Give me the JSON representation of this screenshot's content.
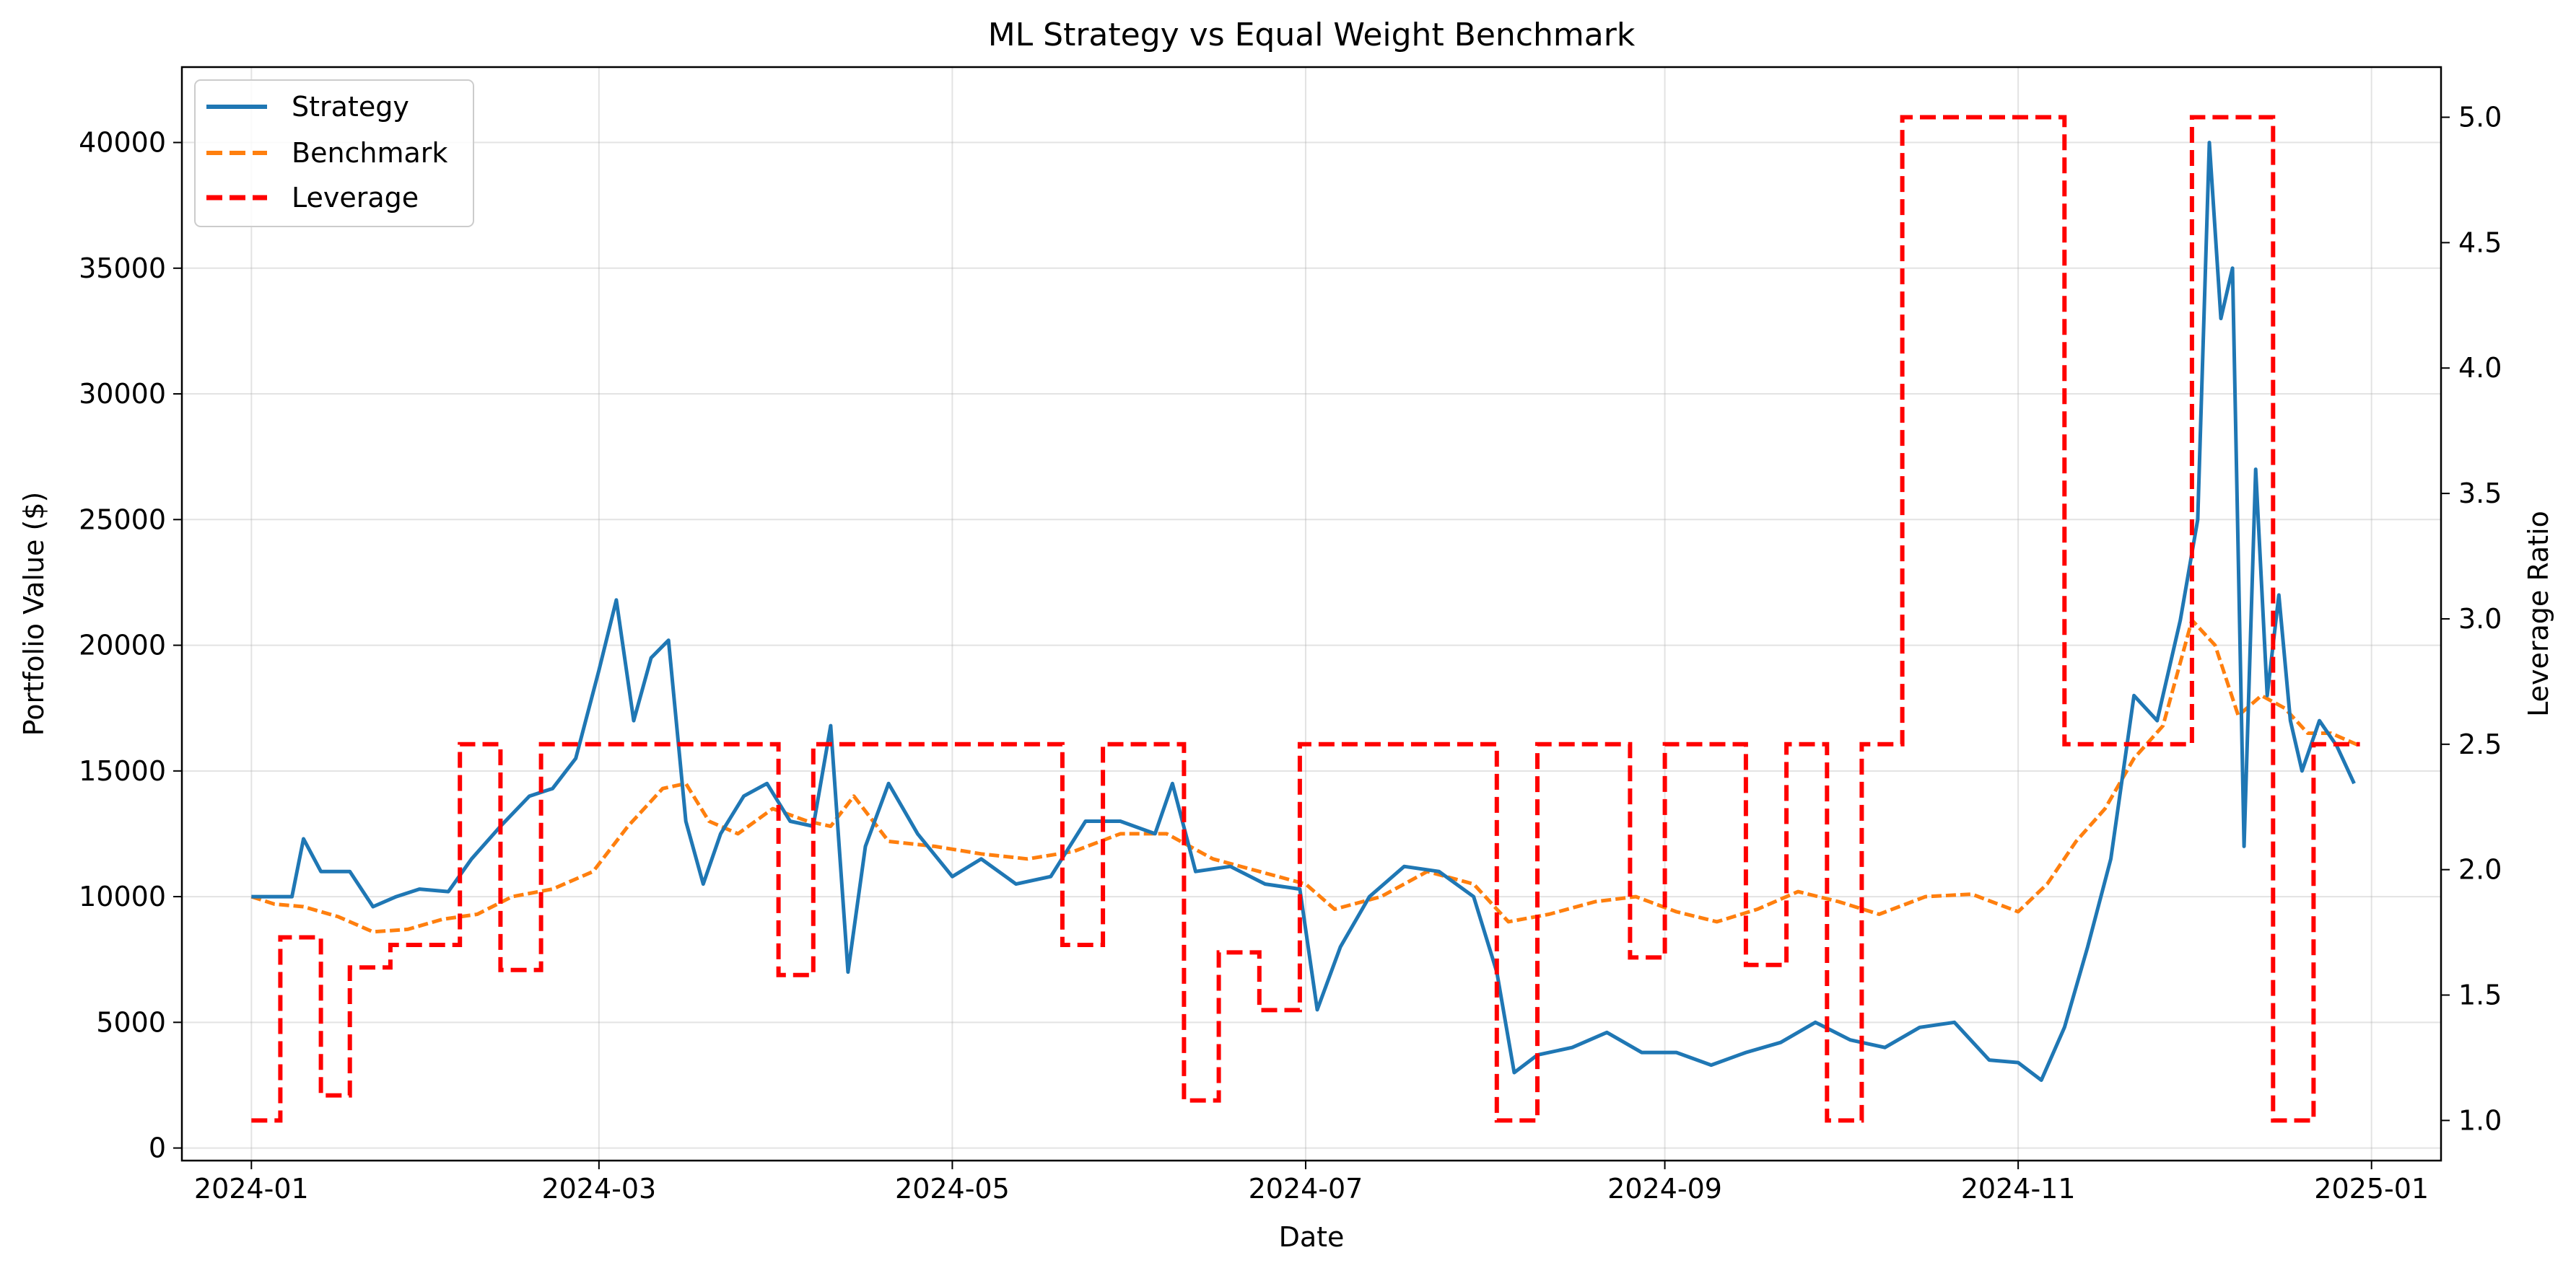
{
  "chart_data": {
    "type": "line",
    "title": "ML Strategy vs Equal Weight Benchmark",
    "xlabel": "Date",
    "ylabel": "Portfolio Value ($)",
    "y2label": "Leverage Ratio",
    "xlim": [
      "2023-12-20",
      "2025-01-13"
    ],
    "ylim": [
      -500,
      43000
    ],
    "y2lim": [
      0.84,
      5.2
    ],
    "x_ticks": [
      "2024-01",
      "2024-03",
      "2024-05",
      "2024-07",
      "2024-09",
      "2024-11",
      "2025-01"
    ],
    "y_ticks": [
      0,
      5000,
      10000,
      15000,
      20000,
      25000,
      30000,
      35000,
      40000
    ],
    "y2_ticks": [
      "1.0",
      "1.5",
      "2.0",
      "2.5",
      "3.0",
      "3.5",
      "4.0",
      "4.5",
      "5.0"
    ],
    "grid": true,
    "legend_position": "top-left",
    "series": [
      {
        "name": "Strategy",
        "axis": "left",
        "style": "solid",
        "color": "#1f77b4",
        "x": [
          "2024-01-01",
          "2024-01-05",
          "2024-01-08",
          "2024-01-10",
          "2024-01-13",
          "2024-01-18",
          "2024-01-22",
          "2024-01-26",
          "2024-01-30",
          "2024-02-04",
          "2024-02-08",
          "2024-02-13",
          "2024-02-18",
          "2024-02-22",
          "2024-02-26",
          "2024-03-01",
          "2024-03-04",
          "2024-03-07",
          "2024-03-10",
          "2024-03-13",
          "2024-03-16",
          "2024-03-19",
          "2024-03-22",
          "2024-03-26",
          "2024-03-30",
          "2024-04-03",
          "2024-04-07",
          "2024-04-10",
          "2024-04-13",
          "2024-04-16",
          "2024-04-20",
          "2024-04-25",
          "2024-05-01",
          "2024-05-06",
          "2024-05-12",
          "2024-05-18",
          "2024-05-24",
          "2024-05-30",
          "2024-06-05",
          "2024-06-08",
          "2024-06-12",
          "2024-06-18",
          "2024-06-24",
          "2024-06-30",
          "2024-07-03",
          "2024-07-07",
          "2024-07-12",
          "2024-07-18",
          "2024-07-24",
          "2024-07-30",
          "2024-08-03",
          "2024-08-06",
          "2024-08-10",
          "2024-08-16",
          "2024-08-22",
          "2024-08-28",
          "2024-09-03",
          "2024-09-09",
          "2024-09-15",
          "2024-09-21",
          "2024-09-27",
          "2024-10-03",
          "2024-10-09",
          "2024-10-15",
          "2024-10-21",
          "2024-10-27",
          "2024-11-01",
          "2024-11-05",
          "2024-11-09",
          "2024-11-13",
          "2024-11-17",
          "2024-11-21",
          "2024-11-25",
          "2024-11-29",
          "2024-12-02",
          "2024-12-04",
          "2024-12-06",
          "2024-12-08",
          "2024-12-10",
          "2024-12-12",
          "2024-12-14",
          "2024-12-16",
          "2024-12-18",
          "2024-12-20",
          "2024-12-23",
          "2024-12-26",
          "2024-12-29"
        ],
        "values": [
          10000,
          10000,
          10000,
          12300,
          11000,
          11000,
          9600,
          10000,
          10300,
          10200,
          11500,
          12800,
          14000,
          14300,
          15500,
          19000,
          21800,
          17000,
          19500,
          20200,
          13000,
          10500,
          12500,
          14000,
          14500,
          13000,
          12800,
          16800,
          7000,
          12000,
          14500,
          12500,
          10800,
          11500,
          10500,
          10800,
          13000,
          13000,
          12500,
          14500,
          11000,
          11200,
          10500,
          10300,
          5500,
          8000,
          10000,
          11200,
          11000,
          10000,
          7000,
          3000,
          3700,
          4000,
          4600,
          3800,
          3800,
          3300,
          3800,
          4200,
          5000,
          4300,
          4000,
          4800,
          5000,
          3500,
          3400,
          2700,
          4800,
          8000,
          11500,
          18000,
          17000,
          21000,
          25000,
          40000,
          33000,
          35000,
          12000,
          27000,
          18000,
          22000,
          17000,
          15000,
          17000,
          16000,
          14500
        ]
      },
      {
        "name": "Benchmark",
        "axis": "left",
        "style": "dashed",
        "color": "#ff7f0e",
        "x": [
          "2024-01-01",
          "2024-01-05",
          "2024-01-10",
          "2024-01-16",
          "2024-01-22",
          "2024-01-28",
          "2024-02-03",
          "2024-02-09",
          "2024-02-15",
          "2024-02-22",
          "2024-02-29",
          "2024-03-06",
          "2024-03-12",
          "2024-03-16",
          "2024-03-20",
          "2024-03-25",
          "2024-03-31",
          "2024-04-06",
          "2024-04-10",
          "2024-04-14",
          "2024-04-20",
          "2024-04-28",
          "2024-05-06",
          "2024-05-14",
          "2024-05-22",
          "2024-05-30",
          "2024-06-07",
          "2024-06-15",
          "2024-06-23",
          "2024-07-01",
          "2024-07-06",
          "2024-07-14",
          "2024-07-22",
          "2024-07-30",
          "2024-08-05",
          "2024-08-12",
          "2024-08-20",
          "2024-08-27",
          "2024-09-03",
          "2024-09-10",
          "2024-09-17",
          "2024-09-24",
          "2024-10-01",
          "2024-10-08",
          "2024-10-16",
          "2024-10-24",
          "2024-11-01",
          "2024-11-06",
          "2024-11-11",
          "2024-11-16",
          "2024-11-21",
          "2024-11-26",
          "2024-12-01",
          "2024-12-05",
          "2024-12-09",
          "2024-12-13",
          "2024-12-17",
          "2024-12-21",
          "2024-12-25",
          "2024-12-30"
        ],
        "values": [
          10000,
          9700,
          9600,
          9200,
          8600,
          8700,
          9100,
          9300,
          10000,
          10300,
          11000,
          12800,
          14300,
          14500,
          13000,
          12500,
          13500,
          13000,
          12800,
          14000,
          12200,
          12000,
          11700,
          11500,
          11800,
          12500,
          12500,
          11500,
          11000,
          10500,
          9500,
          10000,
          11000,
          10500,
          9000,
          9300,
          9800,
          10000,
          9400,
          9000,
          9500,
          10200,
          9800,
          9300,
          10000,
          10100,
          9400,
          10500,
          12200,
          13500,
          15500,
          16800,
          21000,
          20000,
          17200,
          18000,
          17500,
          16500,
          16500,
          16000
        ]
      },
      {
        "name": "Leverage",
        "axis": "right",
        "style": "dashed-step",
        "color": "#ff0000",
        "x": [
          "2024-01-01",
          "2024-01-06",
          "2024-01-13",
          "2024-01-18",
          "2024-01-25",
          "2024-02-06",
          "2024-02-13",
          "2024-02-20",
          "2024-04-01",
          "2024-04-07",
          "2024-05-20",
          "2024-05-27",
          "2024-06-10",
          "2024-06-16",
          "2024-06-23",
          "2024-06-30",
          "2024-08-03",
          "2024-08-10",
          "2024-08-26",
          "2024-09-01",
          "2024-09-15",
          "2024-09-22",
          "2024-09-29",
          "2024-10-05",
          "2024-10-12",
          "2024-11-09",
          "2024-12-01",
          "2024-12-15",
          "2024-12-22",
          "2024-12-30"
        ],
        "values": [
          1.0,
          1.73,
          1.1,
          1.61,
          1.7,
          2.5,
          1.6,
          2.5,
          1.58,
          2.5,
          1.7,
          2.5,
          1.08,
          1.67,
          1.44,
          2.5,
          1.0,
          2.5,
          1.65,
          2.5,
          1.62,
          2.5,
          1.0,
          2.5,
          5.0,
          2.5,
          5.0,
          1.0,
          2.5,
          2.5
        ]
      }
    ]
  }
}
